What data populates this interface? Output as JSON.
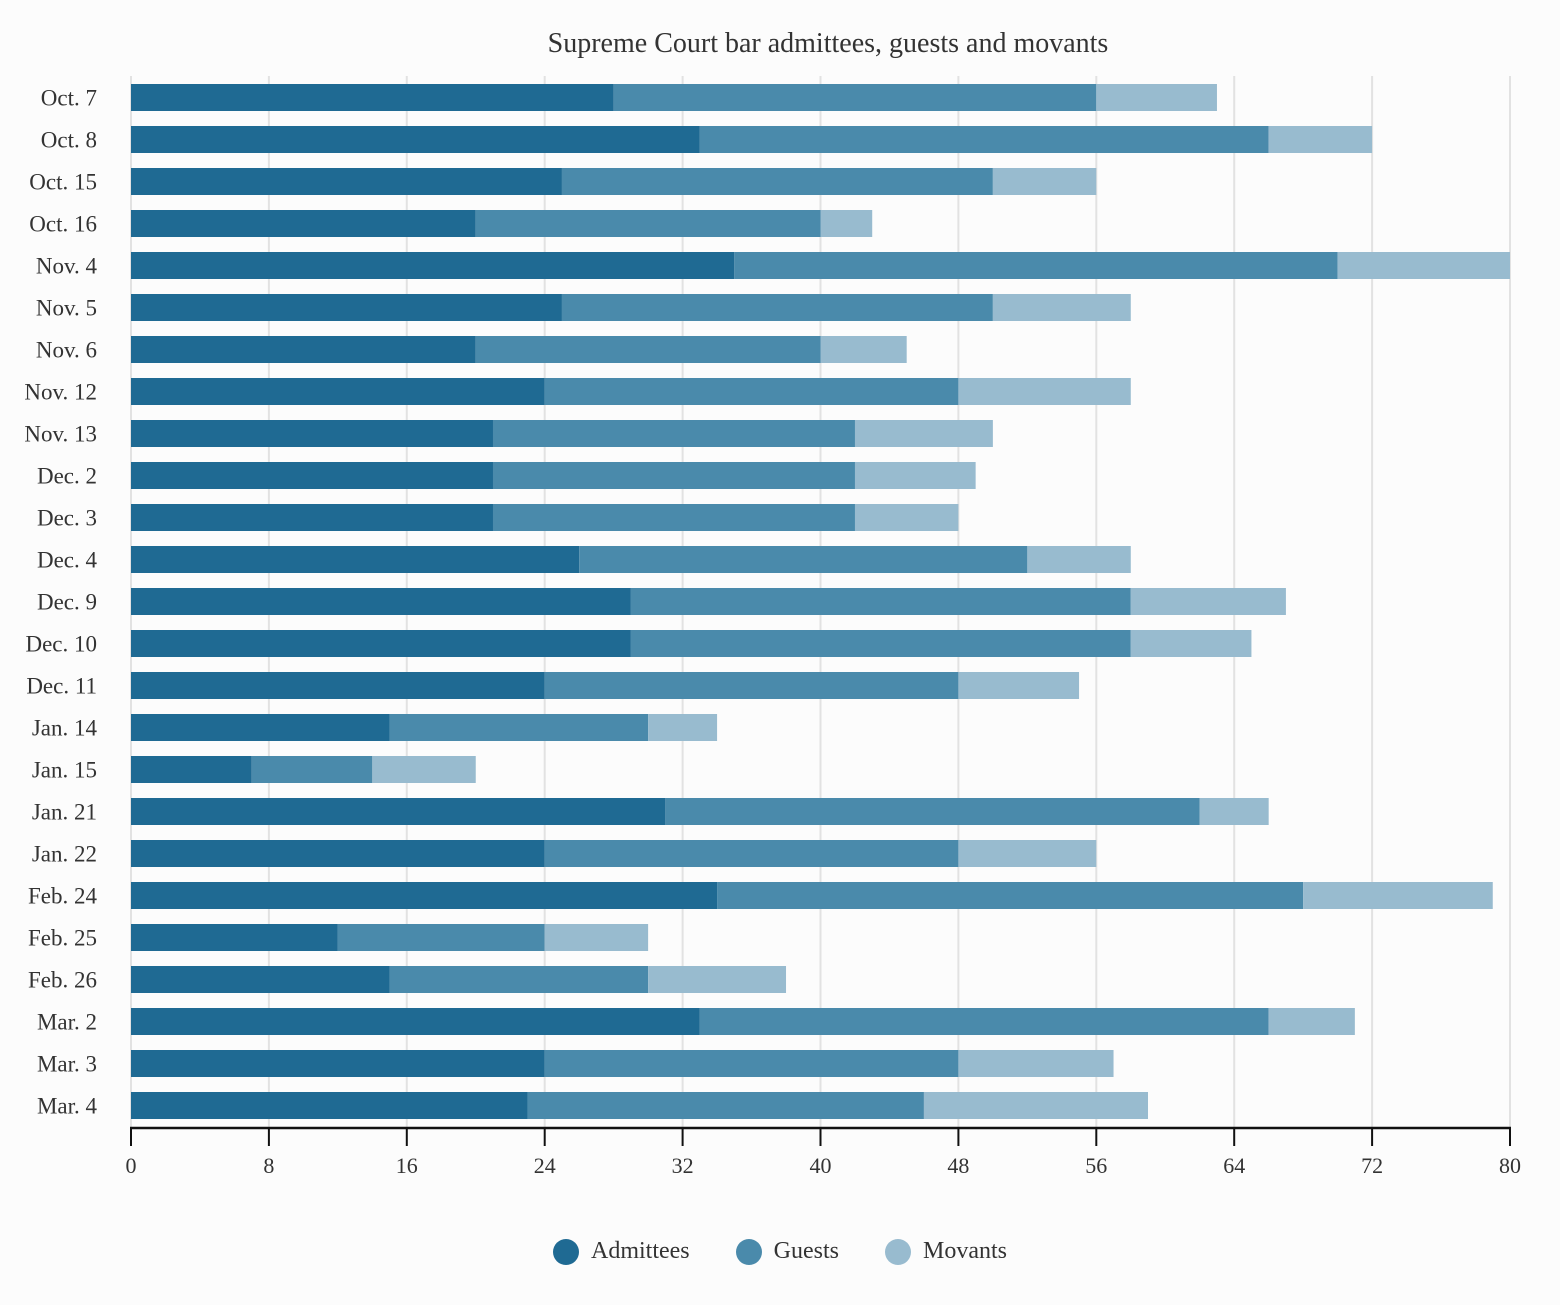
{
  "chart_data": {
    "type": "bar",
    "orientation": "horizontal",
    "stacked": true,
    "title": "Supreme Court bar admittees, guests and movants",
    "xlabel": "",
    "ylabel": "",
    "xlim": [
      0,
      80
    ],
    "xticks": [
      0,
      8,
      16,
      24,
      32,
      40,
      48,
      56,
      64,
      72,
      80
    ],
    "grid": true,
    "legend_position": "bottom-center",
    "categories": [
      "Oct. 7",
      "Oct. 8",
      "Oct. 15",
      "Oct. 16",
      "Nov. 4",
      "Nov. 5",
      "Nov. 6",
      "Nov. 12",
      "Nov. 13",
      "Dec. 2",
      "Dec. 3",
      "Dec. 4",
      "Dec. 9",
      "Dec. 10",
      "Dec. 11",
      "Jan. 14",
      "Jan. 15",
      "Jan. 21",
      "Jan. 22",
      "Feb. 24",
      "Feb. 25",
      "Feb. 26",
      "Mar. 2",
      "Mar. 3",
      "Mar. 4"
    ],
    "series": [
      {
        "name": "Admittees",
        "color": "#1f6a93",
        "values": [
          28,
          33,
          25,
          20,
          35,
          25,
          20,
          24,
          21,
          21,
          21,
          26,
          29,
          29,
          24,
          15,
          7,
          31,
          24,
          34,
          12,
          15,
          33,
          24,
          23
        ]
      },
      {
        "name": "Guests",
        "color": "#4a8aab",
        "values": [
          28,
          33,
          25,
          20,
          35,
          25,
          20,
          24,
          21,
          21,
          21,
          26,
          29,
          29,
          24,
          15,
          7,
          31,
          24,
          34,
          12,
          15,
          33,
          24,
          23
        ]
      },
      {
        "name": "Movants",
        "color": "#98bbcf",
        "values": [
          7,
          6,
          6,
          3,
          10,
          8,
          5,
          10,
          8,
          7,
          6,
          6,
          9,
          7,
          7,
          4,
          6,
          4,
          8,
          11,
          6,
          8,
          5,
          9,
          13
        ]
      }
    ]
  }
}
